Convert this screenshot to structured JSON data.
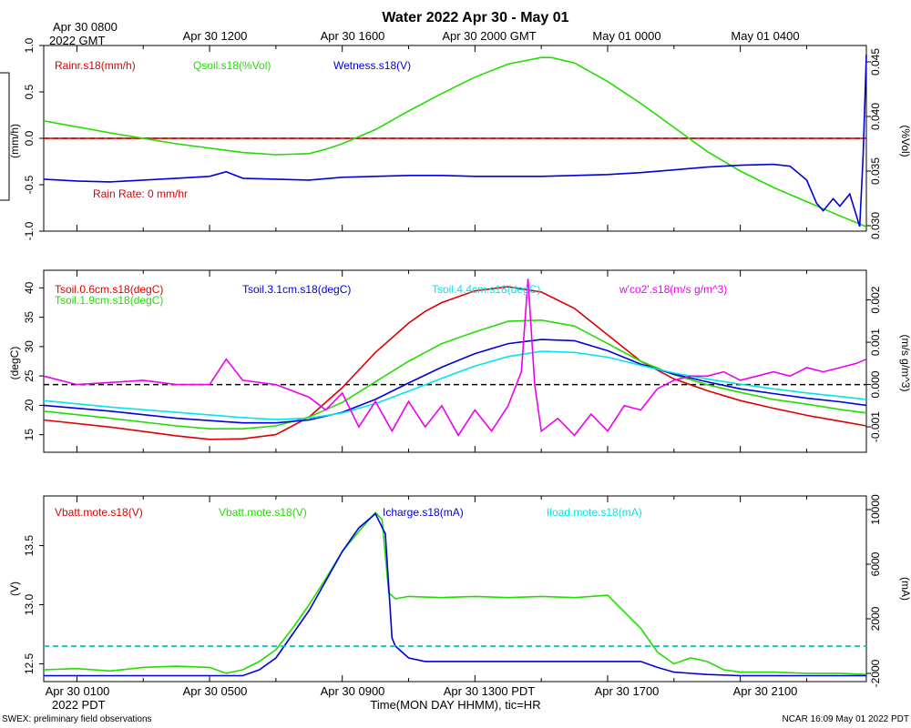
{
  "title": "Water 2022 Apr 30 - May 01",
  "top_axis": {
    "first_label_line1": "Apr 30 0800",
    "first_label_line2": "2022 GMT",
    "labels": [
      "Apr 30 1200",
      "Apr 30 1600",
      "Apr 30 2000 GMT",
      "May 01 0000",
      "May 01 0400"
    ]
  },
  "bottom_axis": {
    "labels": [
      "Apr 30 0100",
      "Apr 30 0500",
      "Apr 30 0900",
      "Apr 30 1300 PDT",
      "Apr 30 1700",
      "Apr 30 2100"
    ],
    "year_label": "2022 PDT",
    "xlabel": "Time(MON DAY HHMM), tic=HR"
  },
  "footer": {
    "left": "SWEX: preliminary field observations",
    "right": "NCAR 16:09 May 01 2022 PDT"
  },
  "colors": {
    "red": "#dd0000",
    "green": "#22dd00",
    "blue": "#0000dd",
    "cyan": "#00e5ee",
    "magenta": "#ee00ee",
    "black": "#000000"
  },
  "chart_data": [
    {
      "type": "line",
      "panel": "water",
      "xlim": [
        0,
        24.8
      ],
      "x_unit": "hours since Apr 30 0000 PDT",
      "left_axis": {
        "label": "(mm/h)",
        "ylim": [
          -1.0,
          1.0
        ],
        "ticks": [
          "-1.0",
          "-0.5",
          "0.0",
          "0.5",
          "1.0"
        ],
        "tick_values": [
          -1.0,
          -0.5,
          0.0,
          0.5,
          1.0
        ]
      },
      "right_axis": {
        "label": "(%Vol)",
        "ylim": [
          0.0295,
          0.0465
        ],
        "ticks": [
          "0.030",
          "0.035",
          "0.040",
          "0.045"
        ],
        "tick_values": [
          0.03,
          0.035,
          0.04,
          0.045
        ]
      },
      "legend": [
        "Rainr.s18(mm/h)",
        "Qsoil.s18(%Vol)",
        "Wetness.s18(V)"
      ],
      "annotation": "Rain Rate: 0 mm/hr",
      "reference_line_left": 0.0,
      "series": [
        {
          "name": "Rainr.s18(mm/h)",
          "color": "red",
          "axis": "left",
          "x": [
            0,
            24.8
          ],
          "y": [
            0,
            0
          ]
        },
        {
          "name": "Qsoil.s18(%Vol)",
          "color": "green",
          "axis": "right",
          "x": [
            0,
            2,
            4,
            6,
            7,
            8,
            8.5,
            9,
            10,
            11,
            12,
            13,
            14,
            15,
            15.3,
            16,
            17,
            18,
            19,
            20,
            21,
            22,
            23,
            24,
            24.8
          ],
          "y": [
            0.0396,
            0.0385,
            0.0375,
            0.0367,
            0.0365,
            0.0366,
            0.037,
            0.0375,
            0.0388,
            0.0405,
            0.0421,
            0.0436,
            0.0448,
            0.0454,
            0.0454,
            0.0449,
            0.0432,
            0.0412,
            0.039,
            0.0368,
            0.035,
            0.0335,
            0.0322,
            0.0309,
            0.0299
          ]
        },
        {
          "name": "Wetness.s18(V)",
          "color": "blue",
          "axis": "left",
          "x": [
            0,
            1,
            2,
            3,
            4,
            5,
            5.5,
            6,
            7,
            8,
            9,
            10,
            11,
            12,
            13,
            14,
            15,
            16,
            17,
            18,
            19,
            20,
            21,
            22,
            22.5,
            23,
            23.3,
            23.5,
            23.8,
            24,
            24.3,
            24.6,
            24.7,
            24.8
          ],
          "y": [
            -0.44,
            -0.46,
            -0.47,
            -0.45,
            -0.43,
            -0.41,
            -0.36,
            -0.43,
            -0.44,
            -0.45,
            -0.42,
            -0.41,
            -0.4,
            -0.4,
            -0.41,
            -0.41,
            -0.41,
            -0.4,
            -0.39,
            -0.37,
            -0.34,
            -0.31,
            -0.29,
            -0.28,
            -0.3,
            -0.45,
            -0.7,
            -0.78,
            -0.65,
            -0.73,
            -0.6,
            -0.95,
            -0.2,
            0.9
          ]
        }
      ]
    },
    {
      "type": "line",
      "panel": "temperature",
      "xlim": [
        0,
        24.8
      ],
      "x_unit": "hours since Apr 30 0000 PDT",
      "left_axis": {
        "label": "(degC)",
        "ylim": [
          12,
          43
        ],
        "ticks": [
          "15",
          "20",
          "25",
          "30",
          "35",
          "40"
        ],
        "tick_values": [
          15,
          20,
          25,
          30,
          35,
          40
        ]
      },
      "right_axis": {
        "label": "(m/s g/m^3)",
        "ylim": [
          -0.0016,
          0.0027
        ],
        "ticks": [
          "-0.001",
          "0.000",
          "0.001",
          "0.002"
        ],
        "tick_values": [
          -0.001,
          0.0,
          0.001,
          0.002
        ]
      },
      "legend": [
        "Tsoil.0.6cm.s18(degC)",
        "Tsoil.1.9cm.s18(degC)",
        "Tsoil.3.1cm.s18(degC)",
        "Tsoil.4.4cm.s18(degC)",
        "w'co2'.s18(m/s g/m^3)"
      ],
      "reference_line_right": 0.0,
      "series": [
        {
          "name": "Tsoil.0.6cm.s18(degC)",
          "color": "red",
          "axis": "left",
          "x": [
            0,
            2,
            4,
            5,
            6,
            7,
            8,
            9,
            10,
            11,
            11.5,
            12,
            13,
            14,
            15,
            16,
            17,
            18,
            19,
            20,
            21,
            22,
            23,
            24,
            24.8
          ],
          "y": [
            17.5,
            16.3,
            14.8,
            14.2,
            14.3,
            15.0,
            18.0,
            23.0,
            29.0,
            34.0,
            36.0,
            37.5,
            39.5,
            40.2,
            39.3,
            36.5,
            32.0,
            27.5,
            24.5,
            22.5,
            20.8,
            19.5,
            18.3,
            17.3,
            16.5
          ]
        },
        {
          "name": "Tsoil.1.9cm.s18(degC)",
          "color": "green",
          "axis": "left",
          "x": [
            0,
            2,
            4,
            5,
            6,
            7,
            8,
            9,
            10,
            11,
            12,
            13,
            14,
            15,
            16,
            17,
            18,
            19,
            20,
            21,
            22,
            23,
            24,
            24.8
          ],
          "y": [
            19.0,
            17.8,
            16.5,
            16.0,
            16.0,
            16.5,
            18.0,
            20.5,
            24.0,
            27.5,
            30.5,
            32.5,
            34.3,
            34.5,
            33.5,
            30.5,
            27.5,
            25.2,
            23.5,
            22.2,
            21.0,
            20.2,
            19.3,
            18.7
          ]
        },
        {
          "name": "Tsoil.3.1cm.s18(degC)",
          "color": "blue",
          "axis": "left",
          "x": [
            0,
            2,
            4,
            6,
            7,
            8,
            9,
            10,
            11,
            12,
            13,
            14,
            15,
            16,
            17,
            18,
            19,
            20,
            21,
            22,
            23,
            24,
            24.8
          ],
          "y": [
            20.0,
            19.0,
            17.8,
            17.0,
            17.0,
            17.5,
            18.8,
            21.0,
            23.8,
            26.5,
            28.8,
            30.5,
            31.2,
            31.0,
            29.3,
            27.0,
            25.3,
            24.0,
            22.8,
            22.0,
            21.2,
            20.6,
            20.0
          ]
        },
        {
          "name": "Tsoil.4.4cm.s18(degC)",
          "color": "cyan",
          "axis": "left",
          "x": [
            0,
            2,
            4,
            6,
            7,
            8,
            9,
            10,
            11,
            12,
            13,
            14,
            15,
            16,
            17,
            18,
            19,
            20,
            21,
            22,
            23,
            24,
            24.8
          ],
          "y": [
            20.8,
            19.7,
            18.8,
            17.9,
            17.6,
            17.8,
            18.7,
            20.3,
            22.4,
            24.6,
            26.7,
            28.3,
            29.2,
            29.0,
            28.2,
            26.8,
            25.5,
            24.5,
            23.6,
            22.8,
            22.1,
            21.5,
            21.0
          ]
        },
        {
          "name": "w'co2'.s18(m/s g/m^3)",
          "color": "magenta",
          "axis": "right",
          "x": [
            0,
            1,
            2,
            3,
            4,
            5,
            5.5,
            6,
            7,
            8,
            8.5,
            9,
            9.5,
            10,
            10.5,
            11,
            11.5,
            12,
            12.5,
            13,
            13.5,
            14,
            14.4,
            14.6,
            14.8,
            15,
            15.5,
            16,
            16.5,
            17,
            17.5,
            18,
            18.5,
            19,
            19.5,
            20,
            20.5,
            21,
            21.5,
            22,
            22.5,
            23,
            23.5,
            24,
            24.5,
            24.8
          ],
          "y": [
            0.0002,
            0.0,
            5e-05,
            0.0001,
            0.0,
            0.0,
            0.0006,
            0.0001,
            0.0,
            -0.0003,
            -0.0006,
            -0.0002,
            -0.001,
            -0.0004,
            -0.0011,
            -0.0004,
            -0.001,
            -0.0005,
            -0.0012,
            -0.0006,
            -0.0011,
            -0.0005,
            0.0003,
            0.0025,
            0.0,
            -0.0011,
            -0.0008,
            -0.0012,
            -0.0007,
            -0.0011,
            -0.0005,
            -0.0006,
            -0.0001,
            0.0001,
            0.0002,
            0.0002,
            0.0003,
            0.0001,
            0.0002,
            0.0003,
            0.0002,
            0.0004,
            0.0003,
            0.0004,
            0.0005,
            0.0006
          ]
        }
      ]
    },
    {
      "type": "line",
      "panel": "power",
      "xlim": [
        0,
        24.8
      ],
      "x_unit": "hours since Apr 30 0000 PDT",
      "left_axis": {
        "label": "(V)",
        "ylim": [
          12.35,
          13.92
        ],
        "ticks": [
          "12.5",
          "13.0",
          "13.5"
        ],
        "tick_values": [
          12.5,
          13.0,
          13.5
        ]
      },
      "right_axis": {
        "label": "(mA)",
        "ylim": [
          -2600,
          11000
        ],
        "ticks": [
          "-2000",
          "2000",
          "6000",
          "10000"
        ],
        "tick_values": [
          -2000,
          2000,
          6000,
          10000
        ]
      },
      "legend": [
        "Vbatt.mote.s18(V)",
        "Vbatt.mote.s18(V)",
        "Icharge.s18(mA)",
        "Iload.mote.s18(mA)"
      ],
      "reference_line_right": 0,
      "series": [
        {
          "name": "Vbatt.mote.s18(V)",
          "color": "green",
          "axis": "left",
          "x": [
            0,
            1,
            2,
            3,
            4,
            5,
            5.5,
            6,
            6.5,
            7,
            7.5,
            8,
            8.5,
            9,
            9.5,
            10,
            10.2,
            10.4,
            10.6,
            11,
            12,
            13,
            14,
            15,
            16,
            17,
            18,
            18.5,
            19,
            19.5,
            20,
            20.5,
            21,
            22,
            23,
            24,
            24.8
          ],
          "y": [
            12.45,
            12.46,
            12.44,
            12.47,
            12.48,
            12.47,
            12.42,
            12.45,
            12.52,
            12.62,
            12.8,
            13.0,
            13.22,
            13.45,
            13.62,
            13.78,
            13.72,
            13.1,
            13.05,
            13.07,
            13.06,
            13.07,
            13.06,
            13.07,
            13.06,
            13.08,
            12.8,
            12.6,
            12.5,
            12.55,
            12.52,
            12.45,
            12.43,
            12.43,
            12.42,
            12.42,
            12.41
          ]
        },
        {
          "name": "Icharge.s18(mA)",
          "color": "blue",
          "axis": "left",
          "x": [
            0,
            2,
            4,
            6,
            6.5,
            7,
            7.5,
            8,
            8.5,
            9,
            9.5,
            10,
            10.3,
            10.5,
            10.6,
            11,
            11.5,
            12,
            13,
            14,
            15,
            16,
            17,
            18,
            18.5,
            19,
            20,
            21,
            22,
            23,
            24,
            24.8
          ],
          "y": [
            12.4,
            12.4,
            12.4,
            12.4,
            12.45,
            12.55,
            12.75,
            12.95,
            13.2,
            13.45,
            13.65,
            13.77,
            13.6,
            12.72,
            12.65,
            12.55,
            12.52,
            12.52,
            12.52,
            12.52,
            12.52,
            12.52,
            12.52,
            12.52,
            12.47,
            12.43,
            12.41,
            12.4,
            12.4,
            12.4,
            12.4,
            12.4
          ]
        },
        {
          "name": "Iload.mote.s18(mA)",
          "color": "cyan",
          "axis": "right",
          "x": [
            0,
            24.8
          ],
          "y": [
            0,
            0
          ]
        }
      ]
    }
  ]
}
